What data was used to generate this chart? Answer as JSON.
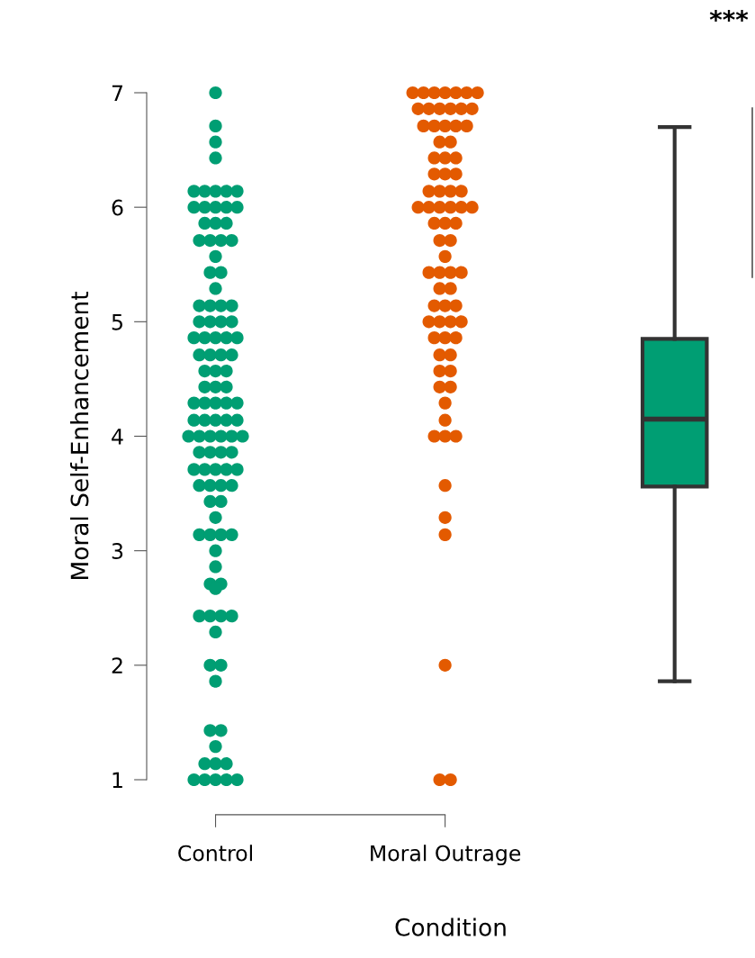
{
  "chart_data": {
    "type": "scatter",
    "ylabel": "Moral Self-Enhancement",
    "xlabel": "Condition",
    "categories": [
      "Control",
      "Moral Outrage",
      null
    ],
    "ylim": [
      1,
      7
    ],
    "yticks": [
      1,
      2,
      3,
      4,
      5,
      6,
      7
    ],
    "grid": false,
    "legend": false,
    "marker": "circle",
    "annotations": [
      "***"
    ],
    "series": [
      {
        "color": "#009e73",
        "x": [
          "Control",
          "Control",
          "Control",
          "Control",
          "Control",
          "Control",
          "Control",
          "Control",
          "Control",
          "Control",
          "Control",
          "Control",
          "Control",
          "Control",
          "Control",
          "Control",
          "Control",
          "Control",
          "Control",
          "Control",
          "Control",
          "Control",
          "Control",
          "Control",
          "Control",
          "Control",
          "Control",
          "Control",
          "Control",
          "Control",
          "Control",
          "Control",
          "Control",
          "Control",
          "Control",
          "Control",
          "Control",
          "Control",
          "Control",
          "Control",
          "Control",
          "Control",
          "Control",
          "Control",
          "Control",
          "Control",
          "Control",
          "Control",
          "Control",
          "Control",
          "Control",
          "Control",
          "Control",
          "Control",
          "Control",
          "Control",
          "Control",
          "Control",
          "Control",
          "Control",
          "Control",
          "Control",
          "Control",
          "Control",
          "Control",
          "Control",
          "Control",
          "Control",
          "Control",
          "Control",
          "Control",
          "Control",
          "Control",
          "Control",
          "Control",
          "Control",
          "Control",
          "Control",
          "Control",
          "Control",
          "Control",
          "Control",
          "Control",
          "Control",
          "Control",
          "Control",
          "Control",
          "Control",
          "Control",
          "Control",
          "Control",
          "Control",
          "Control",
          "Control",
          "Control",
          "Control",
          "Control",
          "Control",
          "Control",
          "Control",
          "Control",
          "Control",
          "Control",
          "Control",
          "Control",
          "Control",
          "Control",
          "Control"
        ],
        "values": [
          7,
          6.71,
          6.57,
          6.43,
          6.14,
          6.14,
          6.14,
          6.14,
          6.14,
          6,
          6,
          6,
          6,
          6,
          5.86,
          5.86,
          5.86,
          5.71,
          5.71,
          5.71,
          5.71,
          5.57,
          5.43,
          5.43,
          5.29,
          5.14,
          5.14,
          5.14,
          5.14,
          5,
          5,
          5,
          5,
          4.86,
          4.86,
          4.86,
          4.86,
          4.86,
          4.71,
          4.71,
          4.71,
          4.71,
          4.57,
          4.57,
          4.57,
          4.43,
          4.43,
          4.43,
          4.29,
          4.29,
          4.29,
          4.29,
          4.29,
          4.14,
          4.14,
          4.14,
          4.14,
          4.14,
          4,
          4,
          4,
          4,
          4,
          4,
          3.86,
          3.86,
          3.86,
          3.86,
          3.71,
          3.71,
          3.71,
          3.71,
          3.71,
          3.57,
          3.57,
          3.57,
          3.57,
          3.43,
          3.43,
          3.29,
          3.14,
          3.14,
          3.14,
          3.14,
          3,
          2.86,
          2.71,
          2.71,
          2.67,
          2.43,
          2.43,
          2.43,
          2.43,
          2.29,
          2,
          2,
          1.86,
          1.43,
          1.43,
          1.29,
          1.14,
          1.14,
          1.14,
          1,
          1,
          1,
          1,
          1
        ]
      },
      {
        "color": "#e35a00",
        "x": [
          "Moral Outrage",
          "Moral Outrage",
          "Moral Outrage",
          "Moral Outrage",
          "Moral Outrage",
          "Moral Outrage",
          "Moral Outrage",
          "Moral Outrage",
          "Moral Outrage",
          "Moral Outrage",
          "Moral Outrage",
          "Moral Outrage",
          "Moral Outrage",
          "Moral Outrage",
          "Moral Outrage",
          "Moral Outrage",
          "Moral Outrage",
          "Moral Outrage",
          "Moral Outrage",
          "Moral Outrage",
          "Moral Outrage",
          "Moral Outrage",
          "Moral Outrage",
          "Moral Outrage",
          "Moral Outrage",
          "Moral Outrage",
          "Moral Outrage",
          "Moral Outrage",
          "Moral Outrage",
          "Moral Outrage",
          "Moral Outrage",
          "Moral Outrage",
          "Moral Outrage",
          "Moral Outrage",
          "Moral Outrage",
          "Moral Outrage",
          "Moral Outrage",
          "Moral Outrage",
          "Moral Outrage",
          "Moral Outrage",
          "Moral Outrage",
          "Moral Outrage",
          "Moral Outrage",
          "Moral Outrage",
          "Moral Outrage",
          "Moral Outrage",
          "Moral Outrage",
          "Moral Outrage",
          "Moral Outrage",
          "Moral Outrage",
          "Moral Outrage",
          "Moral Outrage",
          "Moral Outrage",
          "Moral Outrage",
          "Moral Outrage",
          "Moral Outrage",
          "Moral Outrage",
          "Moral Outrage",
          "Moral Outrage",
          "Moral Outrage",
          "Moral Outrage",
          "Moral Outrage",
          "Moral Outrage",
          "Moral Outrage",
          "Moral Outrage",
          "Moral Outrage",
          "Moral Outrage",
          "Moral Outrage",
          "Moral Outrage",
          "Moral Outrage",
          "Moral Outrage",
          "Moral Outrage",
          "Moral Outrage",
          "Moral Outrage",
          "Moral Outrage"
        ],
        "values": [
          7,
          7,
          7,
          7,
          7,
          7,
          7,
          6.86,
          6.86,
          6.86,
          6.86,
          6.86,
          6.86,
          6.71,
          6.71,
          6.71,
          6.71,
          6.71,
          6.57,
          6.57,
          6.43,
          6.43,
          6.43,
          6.29,
          6.29,
          6.29,
          6.14,
          6.14,
          6.14,
          6.14,
          6,
          6,
          6,
          6,
          6,
          6,
          5.86,
          5.86,
          5.86,
          5.71,
          5.71,
          5.57,
          5.43,
          5.43,
          5.43,
          5.43,
          5.29,
          5.29,
          5.14,
          5.14,
          5.14,
          5,
          5,
          5,
          5,
          4.86,
          4.86,
          4.86,
          4.71,
          4.71,
          4.57,
          4.57,
          4.43,
          4.43,
          4.29,
          4.14,
          4,
          4,
          4,
          3.57,
          3.29,
          3.14,
          2,
          1,
          1
        ]
      },
      {
        "type": "box",
        "color": "#009e73",
        "boxes": [
          null,
          null,
          {
            "low": 1.86,
            "q1": 3.56,
            "median": 4.15,
            "q3": 4.85,
            "high": 6.7
          }
        ]
      }
    ]
  }
}
